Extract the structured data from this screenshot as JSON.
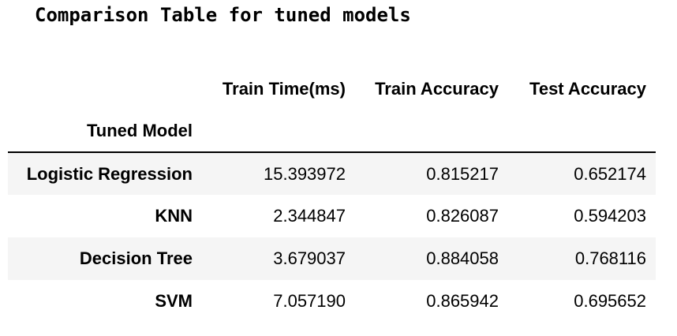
{
  "title": "Comparison Table for tuned models",
  "table": {
    "columns": [
      "Train Time(ms)",
      "Train Accuracy",
      "Test Accuracy"
    ],
    "index_name": "Tuned Model",
    "rows": [
      {
        "model": "Logistic Regression",
        "train_time": "15.393972",
        "train_acc": "0.815217",
        "test_acc": "0.652174"
      },
      {
        "model": "KNN",
        "train_time": "2.344847",
        "train_acc": "0.826087",
        "test_acc": "0.594203"
      },
      {
        "model": "Decision Tree",
        "train_time": "3.679037",
        "train_acc": "0.884058",
        "test_acc": "0.768116"
      },
      {
        "model": "SVM",
        "train_time": "7.057190",
        "train_acc": "0.865942",
        "test_acc": "0.695652"
      }
    ]
  }
}
